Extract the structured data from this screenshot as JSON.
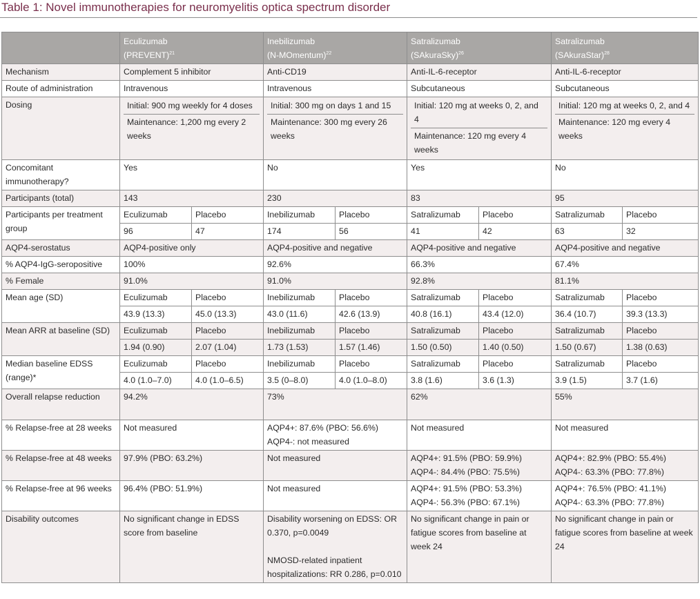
{
  "title": "Table 1: Novel immunotherapies for neuromyelitis optica spectrum disorder",
  "header": {
    "col1": {
      "drug": "Eculizumab",
      "trial": "(PREVENT)",
      "ref": "21"
    },
    "col2": {
      "drug": "Inebilizumab",
      "trial": "(N-MOmentum)",
      "ref": "22"
    },
    "col3": {
      "drug": "Satralizumab",
      "trial": "(SAkuraSky)",
      "ref": "26"
    },
    "col4": {
      "drug": "Satralizumab",
      "trial": "(SAkuraStar)",
      "ref": "28"
    }
  },
  "rows": {
    "mechanism": {
      "label": "Mechanism",
      "c1": "Complement 5 inhibitor",
      "c2": "Anti-CD19",
      "c3": "Anti-IL-6-receptor",
      "c4": "Anti-IL-6-receptor"
    },
    "route": {
      "label": "Route of administration",
      "c1": "Intravenous",
      "c2": "Intravenous",
      "c3": "Subcutaneous",
      "c4": "Subcutaneous"
    },
    "dosing": {
      "label": "Dosing",
      "c1a": "Initial: 900 mg weekly for 4 doses",
      "c1b": "Maintenance: 1,200 mg every 2 weeks",
      "c2a": "Initial: 300 mg on days 1 and 15",
      "c2b": "Maintenance: 300 mg every 26 weeks",
      "c3a": "Initial: 120 mg at weeks 0, 2, and 4",
      "c3b": "Maintenance: 120 mg every 4 weeks",
      "c4a": "Initial: 120 mg at weeks 0, 2, and 4",
      "c4b": "Maintenance: 120 mg every 4 weeks"
    },
    "concomitant": {
      "label": "Concomitant immunotherapy?",
      "c1": "Yes",
      "c2": "No",
      "c3": "Yes",
      "c4": "No"
    },
    "participants": {
      "label": "Participants (total)",
      "c1": "143",
      "c2": "230",
      "c3": "83",
      "c4": "95"
    },
    "per_group": {
      "label": "Participants per treatment group",
      "h1": "Eculizumab",
      "h1p": "Placebo",
      "v1": "96",
      "v1p": "47",
      "h2": "Inebilizumab",
      "h2p": "Placebo",
      "v2": "174",
      "v2p": "56",
      "h3": "Satralizumab",
      "h3p": "Placebo",
      "v3": "41",
      "v3p": "42",
      "h4": "Satralizumab",
      "h4p": "Placebo",
      "v4": "63",
      "v4p": "32"
    },
    "serostatus": {
      "label": "AQP4-serostatus",
      "c1": "AQP4-positive only",
      "c2": "AQP4-positive and negative",
      "c3": "AQP4-positive and negative",
      "c4": "AQP4-positive and negative"
    },
    "seropositive": {
      "label": "% AQP4-IgG-seropositive",
      "c1": "100%",
      "c2": "92.6%",
      "c3": "66.3%",
      "c4": "67.4%"
    },
    "female": {
      "label": "% Female",
      "c1": "91.0%",
      "c2": "91.0%",
      "c3": "92.8%",
      "c4": "81.1%"
    },
    "age": {
      "label": "Mean age (SD)",
      "h1": "Eculizumab",
      "h1p": "Placebo",
      "v1": "43.9 (13.3)",
      "v1p": "45.0 (13.3)",
      "h2": "Inebilizumab",
      "h2p": "Placebo",
      "v2": "43.0 (11.6)",
      "v2p": "42.6 (13.9)",
      "h3": "Satralizumab",
      "h3p": "Placebo",
      "v3": "40.8 (16.1)",
      "v3p": "43.4 (12.0)",
      "h4": "Satralizumab",
      "h4p": "Placebo",
      "v4": "36.4 (10.7)",
      "v4p": "39.3 (13.3)"
    },
    "arr": {
      "label": "Mean ARR at baseline (SD)",
      "h1": "Eculizumab",
      "h1p": "Placebo",
      "v1": "1.94 (0.90)",
      "v1p": "2.07 (1.04)",
      "h2": "Inebilizumab",
      "h2p": "Placebo",
      "v2": "1.73 (1.53)",
      "v2p": "1.57 (1.46)",
      "h3": "Satralizumab",
      "h3p": "Placebo",
      "v3": "1.50 (0.50)",
      "v3p": "1.40 (0.50)",
      "h4": "Satralizumab",
      "h4p": "Placebo",
      "v4": "1.50 (0.67)",
      "v4p": "1.38 (0.63)"
    },
    "edss": {
      "label": "Median baseline EDSS (range)*",
      "h1": "Eculizumab",
      "h1p": "Placebo",
      "v1": "4.0 (1.0–7.0)",
      "v1p": "4.0 (1.0–6.5)",
      "h2": "Inebilizumab",
      "h2p": "Placebo",
      "v2": "3.5 (0–8.0)",
      "v2p": "4.0 (1.0–8.0)",
      "h3": "Satralizumab",
      "h3p": "Placebo",
      "v3": "3.8 (1.6)",
      "v3p": "3.6 (1.3)",
      "h4": "Satralizumab",
      "h4p": "Placebo",
      "v4": "3.9 (1.5)",
      "v4p": "3.7 (1.6)"
    },
    "relapse_reduction": {
      "label": "Overall relapse reduction",
      "c1": "94.2%",
      "c2": "73%",
      "c3": "62%",
      "c4": "55%"
    },
    "rf28": {
      "label": "% Relapse-free at 28 weeks",
      "c1": "Not measured",
      "c2a": "AQP4+: 87.6% (PBO: 56.6%)",
      "c2b": "AQP4-: not measured",
      "c3": "Not measured",
      "c4": "Not measured"
    },
    "rf48": {
      "label": "% Relapse-free at 48 weeks",
      "c1": "97.9% (PBO: 63.2%)",
      "c2": "Not measured",
      "c3a": "AQP4+: 91.5% (PBO: 59.9%)",
      "c3b": "AQP4-: 84.4% (PBO: 75.5%)",
      "c4a": "AQP4+: 82.9% (PBO: 55.4%)",
      "c4b": "AQP4-: 63.3% (PBO: 77.8%)"
    },
    "rf96": {
      "label": "% Relapse-free at 96 weeks",
      "c1": "96.4% (PBO: 51.9%)",
      "c2": "Not measured",
      "c3a": "AQP4+: 91.5% (PBO: 53.3%)",
      "c3b": "AQP4-: 56.3% (PBO: 67.1%)",
      "c4a": "AQP4+: 76.5% (PBO: 41.1%)",
      "c4b": "AQP4-: 63.3% (PBO: 77.8%)"
    },
    "disability": {
      "label": "Disability outcomes",
      "c1": "No significant change in EDSS score from baseline",
      "c2a": "Disability worsening on EDSS: OR 0.370, p=0.0049",
      "c2b": "NMOSD-related inpatient hospitalizations: RR 0.286, p=0.010",
      "c3": "No significant change in pain or fatigue scores from baseline at week 24",
      "c4": "No significant change in pain or fatigue scores from baseline at week 24"
    }
  }
}
